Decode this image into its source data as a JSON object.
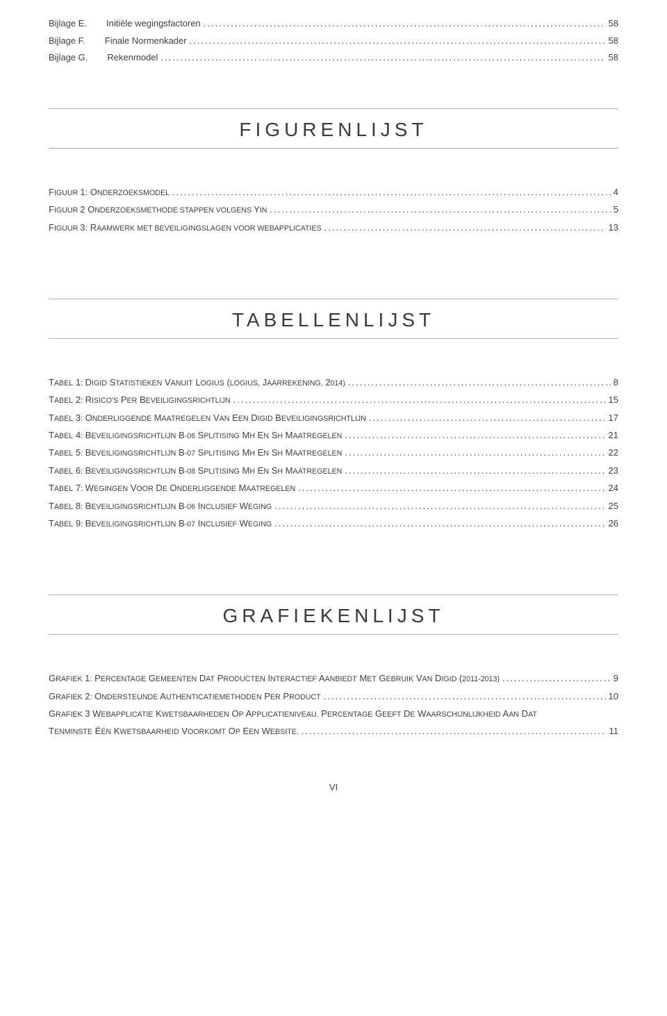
{
  "bijlagen": [
    {
      "label": "Bijlage E.",
      "title": "Initiële wegingsfactoren",
      "page": "58"
    },
    {
      "label": "Bijlage F.",
      "title": "Finale Normenkader",
      "page": "58"
    },
    {
      "label": "Bijlage G.",
      "title": "Rekenmodel",
      "page": "58"
    }
  ],
  "sections": {
    "figuren": {
      "heading": "FIGURENLIJST",
      "items": [
        {
          "pre": "F",
          "sc": "IGUUR ",
          "rest": "1: O",
          "sc2": "NDERZOEKSMODEL",
          "tail": "",
          "page": "4"
        },
        {
          "pre": "F",
          "sc": "IGUUR ",
          "rest": "2 O",
          "sc2": "NDERZOEKSMETHODE STAPPEN VOLGENS ",
          "tail": "Y",
          "sc3": "IN",
          "page": "5"
        },
        {
          "pre": "F",
          "sc": "IGUUR ",
          "rest": "3: R",
          "sc2": "AAMWERK MET BEVEILIGINGSLAGEN VOOR WEBAPPLICATIES",
          "tail": "",
          "page": "13"
        }
      ]
    },
    "tabellen": {
      "heading": "TABELLENLIJST",
      "items": [
        {
          "text": "TABEL 1: DIGID STATISTIEKEN VANUIT LOGIUS (LOGIUS, JAARREKENING, 2014)",
          "page": "8"
        },
        {
          "text": "TABEL 2: RISICO'S PER BEVEILIGINGSRICHTLIJN",
          "page": "15"
        },
        {
          "text": "TABEL 3: ONDERLIGGENDE MAATREGELEN VAN EEN DIGID BEVEILIGINGSRICHTLIJN",
          "page": "17"
        },
        {
          "text": "TABEL 4: BEVEILIGINGSRICHTLIJN B-06 SPLITISING MH EN SH MAATREGELEN",
          "page": "21"
        },
        {
          "text": "TABEL 5: BEVEILIGINGSRICHTLIJN B-07 SPLITISING MH EN SH MAATREGELEN",
          "page": "22"
        },
        {
          "text": "TABEL 6: BEVEILIGINGSRICHTLIJN B-08 SPLITISING MH EN SH MAATREGELEN",
          "page": "23"
        },
        {
          "text": "TABEL 7: WEGINGEN VOOR DE ONDERLIGGENDE MAATREGELEN",
          "page": "24"
        },
        {
          "text": "TABEL 8: BEVEILIGINGSRICHTLIJN B-06 INCLUSIEF WEGING",
          "page": "25"
        },
        {
          "text": "TABEL 9: BEVEILIGINGSRICHTLIJN B-07 INCLUSIEF WEGING",
          "page": "26"
        }
      ]
    },
    "grafieken": {
      "heading": "GRAFIEKENLIJST",
      "items": [
        {
          "text": "GRAFIEK 1: PERCENTAGE GEMEENTEN DAT PRODUCTEN INTERACTIEF AANBIEDT MET GEBRUIK VAN DIGID (2011-2013)",
          "page": "9"
        },
        {
          "text": "GRAFIEK 2: ONDERSTEUNDE AUTHENTICATIEMETHODEN PER PRODUCT",
          "page": "10"
        },
        {
          "text": "GRAFIEK 3 WEBAPPLICATIE KWETSBAARHEDEN OP APPLICATIENIVEAU. PERCENTAGE GEEFT DE WAARSCHIJNLIJKHEID AAN DAT TENMINSTE ÉÉN KWETSBAARHEID VOORKOMT OP EEN WEBSITE.",
          "page": "11",
          "multiline": true
        }
      ]
    }
  },
  "footer": "VI",
  "dots": "......................................................................................................................................................................................................................................................................................"
}
